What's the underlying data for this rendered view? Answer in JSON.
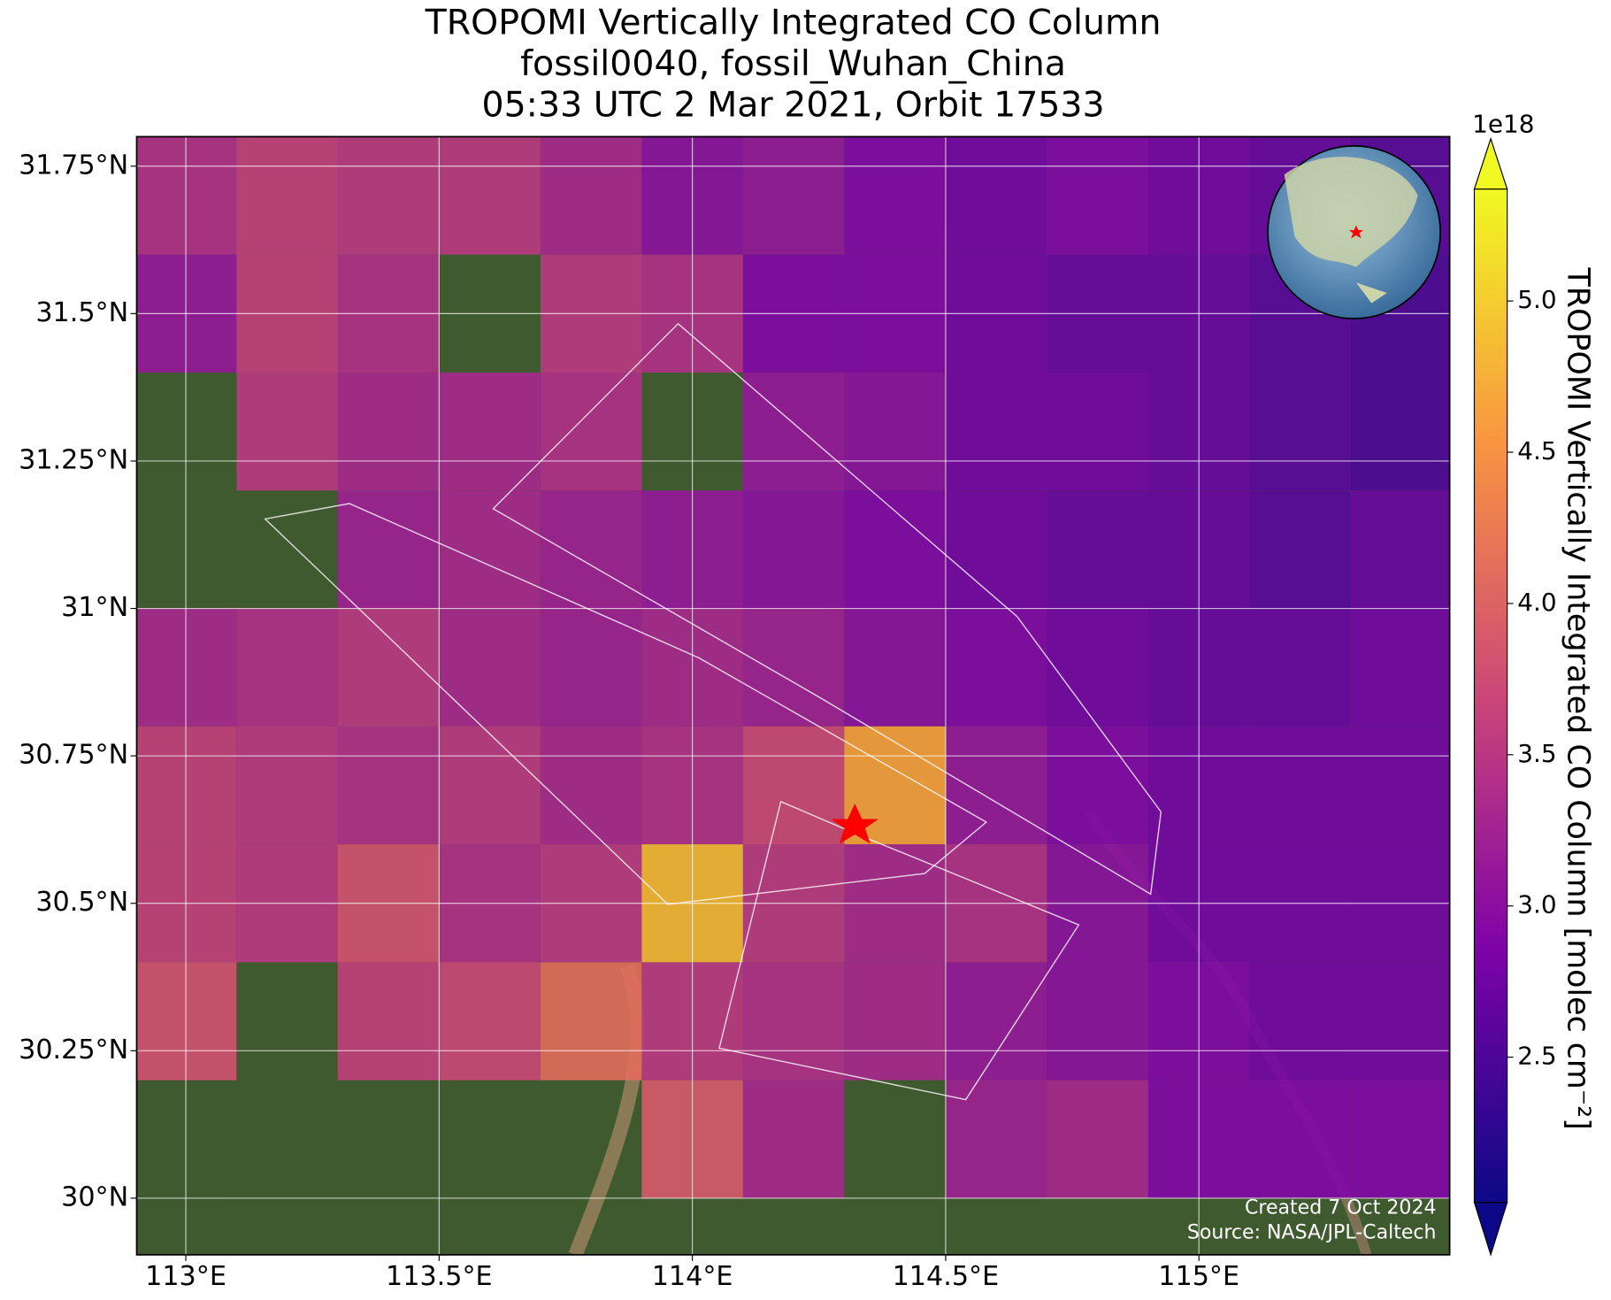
{
  "chart_data": {
    "type": "map",
    "title": [
      "TROPOMI Vertically Integrated CO Column",
      "fossil0040, fossil_Wuhan_China",
      "05:33 UTC 2 Mar 2021, Orbit 17533"
    ],
    "colorbar_label": "TROPOMI Vertically Integrated CO Column [molec cm⁻²]",
    "colorbar_offset": "1e18",
    "footer": [
      "Created 7 Oct 2024",
      "Source: NASA/JPL-Caltech"
    ],
    "xlim": [
      112.903,
      115.495
    ],
    "ylim": [
      29.904,
      31.8
    ],
    "xticks": [
      {
        "value": 113,
        "label": "113°E"
      },
      {
        "value": 113.5,
        "label": "113.5°E"
      },
      {
        "value": 114,
        "label": "114°E"
      },
      {
        "value": 114.5,
        "label": "114.5°E"
      },
      {
        "value": 115,
        "label": "115°E"
      }
    ],
    "yticks": [
      {
        "value": 31.75,
        "label": "31.75°N"
      },
      {
        "value": 31.5,
        "label": "31.5°N"
      },
      {
        "value": 31.25,
        "label": "31.25°N"
      },
      {
        "value": 31,
        "label": "31°N"
      },
      {
        "value": 30.75,
        "label": "30.75°N"
      },
      {
        "value": 30.5,
        "label": "30.5°N"
      },
      {
        "value": 30.25,
        "label": "30.25°N"
      },
      {
        "value": 30,
        "label": "30°N"
      }
    ],
    "clim": [
      2.02,
      5.37
    ],
    "cticks": [
      {
        "value": 5,
        "label": "5.0"
      },
      4.5,
      {
        "value": 4,
        "label": "4.0"
      },
      3.5,
      {
        "value": 3,
        "label": "3.0"
      },
      2.5
    ],
    "colormap": "plasma",
    "grid": true,
    "lon_edges": [
      112.9,
      113.1,
      113.3,
      113.5,
      113.7,
      113.9,
      114.1,
      114.3,
      114.5,
      114.7,
      114.9,
      115.1,
      115.3,
      115.5
    ],
    "lat_edges": [
      31.8,
      31.6,
      31.4,
      31.2,
      31.0,
      30.8,
      30.6,
      30.4,
      30.2,
      30.0
    ],
    "values": [
      [
        3.4,
        3.6,
        3.5,
        3.5,
        3.3,
        3.0,
        3.1,
        2.9,
        2.8,
        2.9,
        2.8,
        2.7,
        2.6
      ],
      [
        3.1,
        3.6,
        3.4,
        null,
        3.5,
        3.4,
        2.9,
        2.9,
        2.8,
        2.7,
        2.7,
        2.6,
        2.5
      ],
      [
        null,
        3.5,
        3.3,
        3.3,
        3.4,
        null,
        3.1,
        3.0,
        2.8,
        2.8,
        2.7,
        2.6,
        2.5
      ],
      [
        null,
        null,
        3.2,
        3.3,
        3.2,
        3.1,
        3.0,
        2.9,
        2.8,
        2.7,
        2.7,
        2.6,
        2.7
      ],
      [
        3.3,
        3.4,
        3.5,
        3.3,
        3.2,
        3.3,
        3.2,
        3.0,
        2.9,
        2.8,
        2.7,
        2.7,
        2.8
      ],
      [
        3.6,
        3.5,
        3.4,
        3.5,
        3.3,
        3.4,
        3.7,
        4.6,
        3.1,
        2.9,
        2.8,
        2.8,
        2.8
      ],
      [
        3.6,
        3.5,
        3.8,
        3.4,
        3.5,
        4.8,
        3.5,
        3.3,
        3.4,
        3.0,
        2.8,
        2.8,
        2.8
      ],
      [
        3.8,
        null,
        3.6,
        3.7,
        4.1,
        3.5,
        3.4,
        3.3,
        3.1,
        3.0,
        2.9,
        2.8,
        2.8
      ],
      [
        null,
        null,
        null,
        null,
        null,
        3.9,
        3.3,
        null,
        3.2,
        3.3,
        2.9,
        2.9,
        2.9
      ]
    ]
  }
}
